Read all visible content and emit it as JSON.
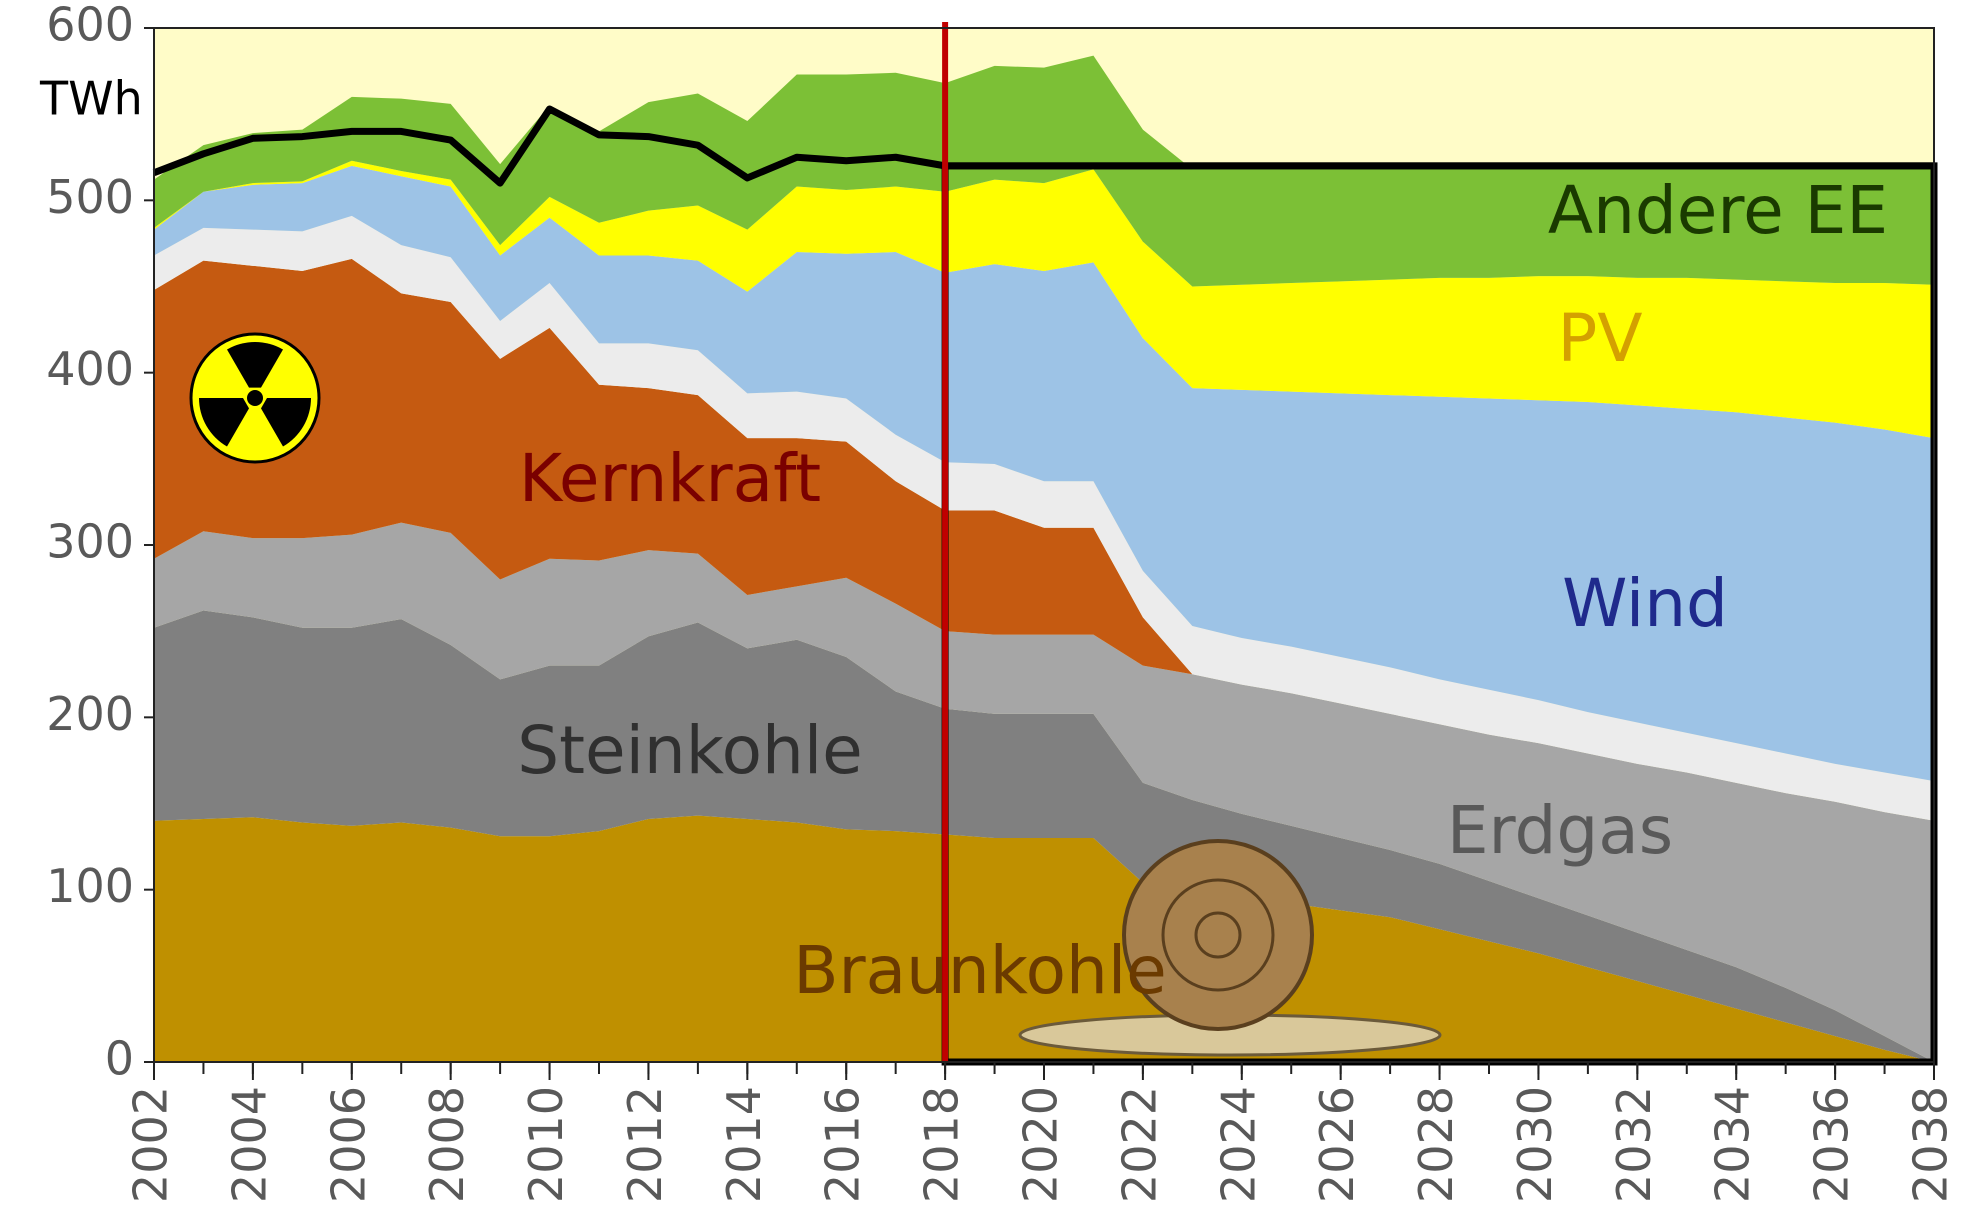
{
  "chart_data": {
    "type": "area",
    "ylabel": "TWh",
    "x": [
      2002,
      2003,
      2004,
      2005,
      2006,
      2007,
      2008,
      2009,
      2010,
      2011,
      2012,
      2013,
      2014,
      2015,
      2016,
      2017,
      2018,
      2019,
      2020,
      2021,
      2022,
      2023,
      2024,
      2025,
      2026,
      2027,
      2028,
      2029,
      2030,
      2031,
      2032,
      2033,
      2034,
      2035,
      2036,
      2037,
      2038
    ],
    "xlim": [
      2002,
      2038
    ],
    "xticks": [
      2002,
      2004,
      2006,
      2008,
      2010,
      2012,
      2014,
      2016,
      2018,
      2020,
      2022,
      2024,
      2026,
      2028,
      2030,
      2032,
      2034,
      2036,
      2038
    ],
    "ylim": [
      0,
      600
    ],
    "yticks": [
      0,
      100,
      200,
      300,
      400,
      500,
      600
    ],
    "background": "#fffcc8",
    "series": [
      {
        "name": "Braunkohle",
        "color": "#bf9000",
        "label_color": "#6b3a00",
        "values": [
          140,
          141,
          142,
          139,
          137,
          139,
          136,
          131,
          131,
          134,
          141,
          143,
          141,
          139,
          135,
          134,
          132,
          130,
          130,
          130,
          104,
          100,
          96,
          92,
          88,
          84,
          77,
          70,
          63,
          55,
          47,
          39,
          31,
          23,
          15,
          7,
          0
        ]
      },
      {
        "name": "Steinkohle",
        "color": "#808080",
        "label_color": "#303030",
        "values": [
          112,
          121,
          116,
          113,
          115,
          118,
          106,
          91,
          99,
          96,
          106,
          112,
          99,
          106,
          100,
          81,
          73,
          72,
          72,
          72,
          58,
          52,
          48,
          45,
          42,
          39,
          38,
          35,
          32,
          30,
          28,
          26,
          24,
          20,
          15,
          8,
          0
        ]
      },
      {
        "name": "Erdgas",
        "color": "#a6a6a6",
        "label_color": "#595959",
        "values": [
          40,
          46,
          46,
          52,
          54,
          56,
          65,
          58,
          62,
          61,
          50,
          40,
          31,
          31,
          46,
          51,
          45,
          46,
          46,
          46,
          68,
          73,
          75,
          77,
          78,
          79,
          81,
          85,
          90,
          94,
          98,
          103,
          107,
          113,
          121,
          130,
          140
        ]
      },
      {
        "name": "Kernkraft",
        "color": "#c55a11",
        "label_color": "#7a0000",
        "values": [
          156,
          157,
          158,
          155,
          160,
          133,
          134,
          128,
          134,
          102,
          94,
          92,
          91,
          86,
          79,
          71,
          70,
          72,
          62,
          62,
          28,
          0,
          0,
          0,
          0,
          0,
          0,
          0,
          0,
          0,
          0,
          0,
          0,
          0,
          0,
          0,
          0
        ]
      },
      {
        "color": "#ececec",
        "values": [
          20,
          19,
          21,
          23,
          25,
          28,
          26,
          22,
          26,
          24,
          26,
          26,
          26,
          27,
          25,
          27,
          28,
          27,
          27,
          27,
          27,
          28,
          27,
          27,
          27,
          27,
          26,
          26,
          25,
          24,
          24,
          23,
          23,
          23,
          22,
          23,
          23
        ]
      },
      {
        "name": "Wind",
        "color": "#9dc3e6",
        "label_color": "#1f2a8c",
        "values": [
          15,
          21,
          26,
          28,
          29,
          40,
          41,
          38,
          38,
          51,
          51,
          52,
          59,
          81,
          84,
          106,
          110,
          116,
          122,
          127,
          135,
          138,
          144,
          148,
          153,
          158,
          164,
          169,
          174,
          180,
          184,
          188,
          192,
          195,
          198,
          199,
          199
        ]
      },
      {
        "name": "PV",
        "color": "#ffff00",
        "label_color": "#d4a000",
        "values": [
          1,
          0,
          1,
          1,
          3,
          3,
          4,
          6,
          12,
          19,
          26,
          32,
          36,
          38,
          37,
          38,
          47,
          49,
          51,
          54,
          56,
          59,
          61,
          63,
          65,
          67,
          69,
          70,
          72,
          73,
          74,
          76,
          77,
          79,
          81,
          85,
          89
        ]
      },
      {
        "name": "Andere EE",
        "color": "#7cc036",
        "label_color": "#1a3a00",
        "values": [
          28,
          27,
          29,
          30,
          37,
          42,
          44,
          47,
          53,
          53,
          63,
          65,
          63,
          65,
          67,
          66,
          63,
          66,
          67,
          66,
          65,
          68,
          67,
          66,
          65,
          65,
          64,
          64,
          64,
          64,
          65,
          65,
          66,
          67,
          68,
          68,
          69
        ]
      },
      {
        "type": "line",
        "color": "#000000",
        "values": [
          516,
          527,
          536,
          537,
          540,
          540,
          535,
          510,
          553,
          538,
          537,
          532,
          513,
          525,
          523,
          525,
          520,
          520,
          520,
          520,
          520,
          520,
          520,
          520,
          520,
          520,
          520,
          520,
          520,
          520,
          520,
          520,
          520,
          520,
          520,
          520,
          520
        ]
      }
    ],
    "box": {
      "x0": 2018,
      "x1": 2038,
      "y0": 0,
      "y1": 520,
      "color": "#000000"
    },
    "vline": {
      "x": 2018,
      "color": "#c00000"
    }
  }
}
